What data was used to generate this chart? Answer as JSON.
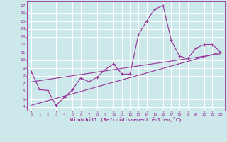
{
  "xlabel": "Windchill (Refroidissement éolien,°C)",
  "bg_color": "#cce8ea",
  "grid_color": "#ffffff",
  "line_color": "#993399",
  "xlim": [
    -0.5,
    23.5
  ],
  "ylim": [
    3.5,
    17.5
  ],
  "xticks": [
    0,
    1,
    2,
    3,
    4,
    5,
    6,
    7,
    8,
    9,
    10,
    11,
    12,
    13,
    14,
    15,
    16,
    17,
    18,
    19,
    20,
    21,
    22,
    23
  ],
  "yticks": [
    4,
    5,
    6,
    7,
    8,
    9,
    10,
    11,
    12,
    13,
    14,
    15,
    16,
    17
  ],
  "line1_x": [
    0,
    1,
    2,
    3,
    4,
    5,
    6,
    7,
    8,
    9,
    10,
    11,
    12,
    13,
    14,
    15,
    16,
    17,
    18,
    19,
    20,
    21,
    22,
    23
  ],
  "line1_y": [
    8.5,
    6.2,
    6.1,
    4.2,
    5.2,
    6.2,
    7.7,
    7.2,
    7.8,
    8.8,
    9.5,
    8.2,
    8.2,
    13.2,
    15.0,
    16.5,
    17.0,
    12.5,
    10.5,
    10.2,
    11.5,
    12.0,
    12.0,
    11.0
  ],
  "line2_x": [
    0,
    23
  ],
  "line2_y": [
    4.2,
    11.0
  ],
  "line3_x": [
    0,
    23
  ],
  "line3_y": [
    7.2,
    10.8
  ]
}
